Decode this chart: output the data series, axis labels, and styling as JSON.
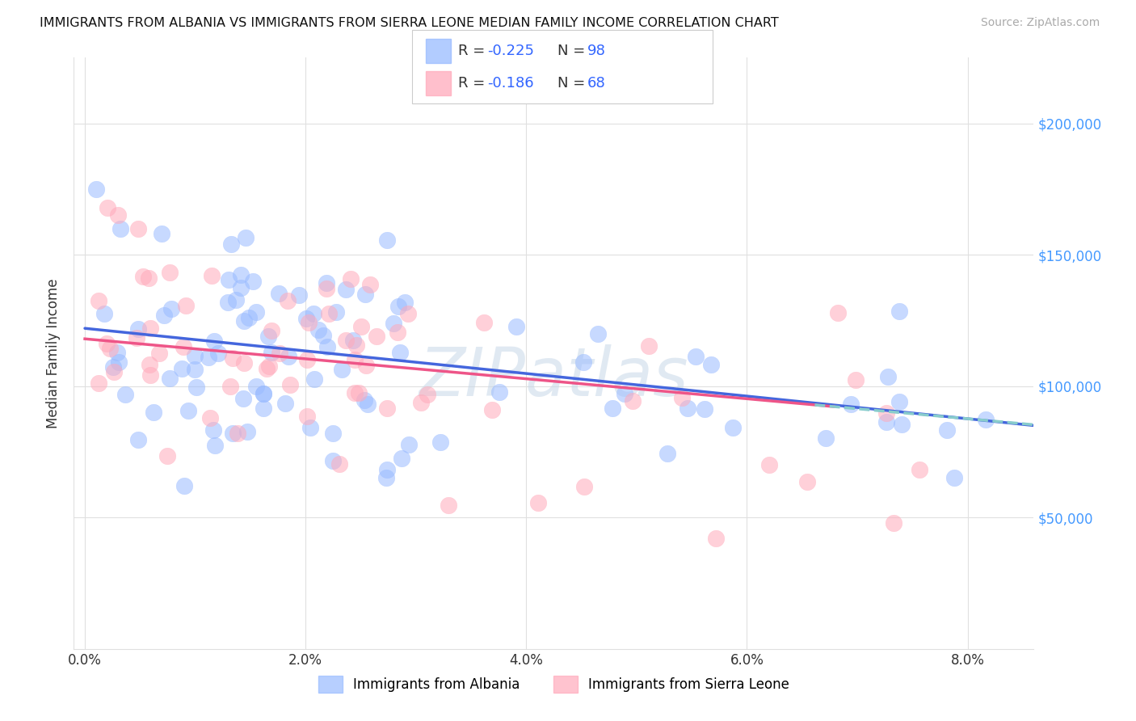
{
  "title": "IMMIGRANTS FROM ALBANIA VS IMMIGRANTS FROM SIERRA LEONE MEDIAN FAMILY INCOME CORRELATION CHART",
  "source": "Source: ZipAtlas.com",
  "ylabel": "Median Family Income",
  "ytick_labels": [
    "$50,000",
    "$100,000",
    "$150,000",
    "$200,000"
  ],
  "ytick_vals": [
    50000,
    100000,
    150000,
    200000
  ],
  "xlim": [
    -0.001,
    0.086
  ],
  "ylim": [
    0,
    225000
  ],
  "albania_color": "#99bbff",
  "sierra_leone_color": "#ffaabb",
  "albania_line_color": "#4466dd",
  "sierra_line_color": "#ee5588",
  "dashed_line_color": "#88cccc",
  "legend_value_color": "#3366ff",
  "right_tick_color": "#4499ff",
  "albania_R": "-0.225",
  "albania_N": "98",
  "sierra_leone_R": "-0.186",
  "sierra_leone_N": "68",
  "legend_label_albania": "Immigrants from Albania",
  "legend_label_sierra": "Immigrants from Sierra Leone",
  "watermark": "ZIPatlas",
  "n_albania": 98,
  "n_sierra": 68,
  "xlabel_ticks": [
    "0.0%",
    "2.0%",
    "4.0%",
    "6.0%",
    "8.0%"
  ],
  "xlabel_vals": [
    0.0,
    0.02,
    0.04,
    0.06,
    0.08
  ],
  "grid_color": "#e0e0e0",
  "title_color": "#111111",
  "source_color": "#aaaaaa",
  "alb_intercept": 122000,
  "alb_slope": -430000,
  "sier_intercept": 118000,
  "sier_slope": -380000
}
